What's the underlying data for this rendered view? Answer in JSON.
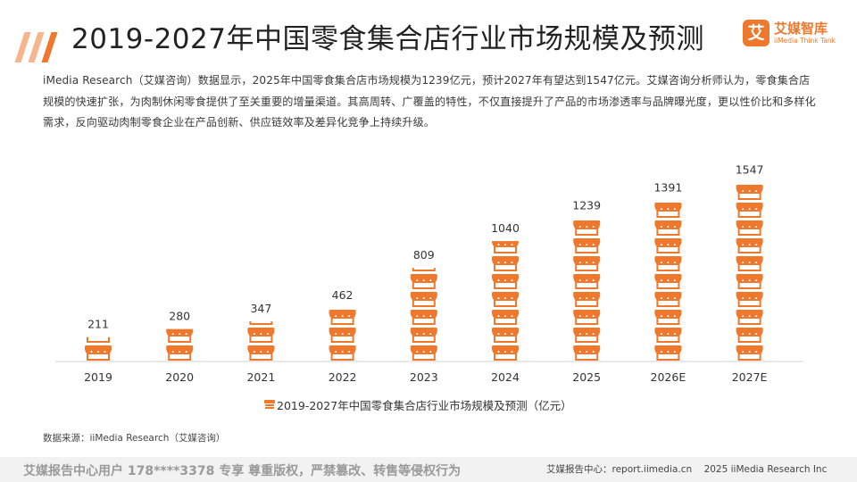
{
  "header": {
    "title": "2019-2027年中国零食集合店行业市场规模及预测",
    "logo_mark": "艾",
    "logo_text": "艾媒智库",
    "logo_sub": "iiMedia Think Tank"
  },
  "description": "iMedia Research（艾媒咨询）数据显示，2025年中国零食集合店市场规模为1239亿元，预计2027年有望达到1547亿元。艾媒咨询分析师认为，零食集合店规模的快速扩张，为肉制休闲零食提供了至关重要的增量渠道。其高周转、广覆盖的特性，不仅直接提升了产品的市场渗透率与品牌曝光度，更以性价比和多样化需求，反向驱动肉制零食企业在产品创新、供应链效率及差异化竞争上持续升级。",
  "chart_data": {
    "type": "bar",
    "title": "2019-2027年中国零食集合店行业市场规模及预测",
    "categories": [
      "2019",
      "2020",
      "2021",
      "2022",
      "2023",
      "2024",
      "2025",
      "2026E",
      "2027E"
    ],
    "series": [
      {
        "name": "2019-2027年中国零食集合店行业市场规模及预测（亿元）",
        "values": [
          211,
          280,
          347,
          462,
          809,
          1040,
          1239,
          1391,
          1547
        ]
      }
    ],
    "xlabel": "",
    "ylabel": "",
    "ylim": [
      0,
      1600
    ],
    "grid": false,
    "legend_position": "bottom-center",
    "color": "#f0782d"
  },
  "source": "数据来源：iiMedia Research（艾媒咨询）",
  "footer": {
    "watermark": "艾媒报告中心用户 178****3378 专享 尊重版权，严禁篡改、转售等侵权行为",
    "report_center": "艾媒报告中心：report.iimedia.cn",
    "copyright": "2025 iiMedia Research Inc"
  }
}
